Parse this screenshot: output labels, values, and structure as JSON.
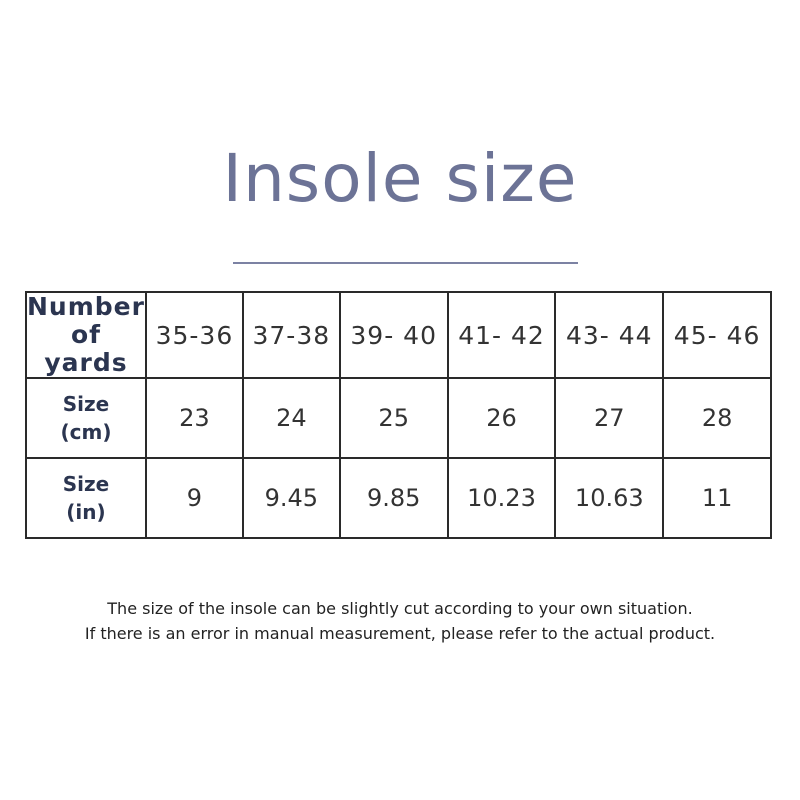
{
  "title": "Insole size",
  "colors": {
    "title": "#6c7396",
    "row_header": "#2b3550",
    "border": "#2a2a2a"
  },
  "table": {
    "rows": [
      {
        "header": [
          "Number",
          "of yards"
        ],
        "cells": [
          "35-36",
          "37-38",
          "39- 40",
          "41- 42",
          "43- 44",
          "45- 46"
        ]
      },
      {
        "header": [
          "Size",
          "(cm)"
        ],
        "cells": [
          "23",
          "24",
          "25",
          "26",
          "27",
          "28"
        ]
      },
      {
        "header": [
          "Size",
          "(in)"
        ],
        "cells": [
          "9",
          "9.45",
          "9.85",
          "10.23",
          "10.63",
          "11"
        ]
      }
    ]
  },
  "notes": [
    "The size of the insole can be slightly cut according to your own situation.",
    "If there is an error in manual measurement, please refer to the actual product."
  ]
}
